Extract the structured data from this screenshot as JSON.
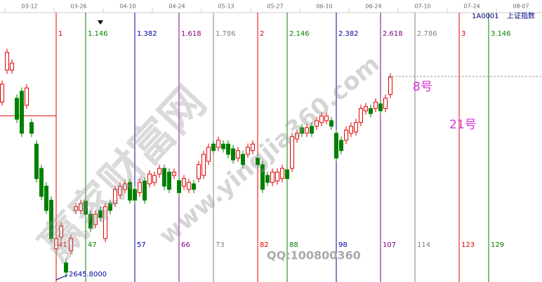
{
  "chart_data": {
    "type": "candlestick",
    "symbol": "1A0001",
    "name": "上证指数",
    "dates": [
      "03-12",
      "03-26",
      "04-10",
      "04-24",
      "05-13",
      "05-27",
      "06-10",
      "06-24",
      "07-10",
      "07-24",
      "08-07"
    ],
    "ylim": [
      2640,
      3240
    ],
    "up_color": "#e00000",
    "down_color": "#008000",
    "candles": [
      [
        3022,
        3068,
        3014,
        3060
      ],
      [
        3090,
        3136,
        3082,
        3128
      ],
      [
        3090,
        3113,
        3082,
        3105
      ],
      [
        3030,
        3038,
        2977,
        2985
      ],
      [
        3045,
        3053,
        2947,
        2955
      ],
      [
        3015,
        3060,
        3007,
        3052
      ],
      [
        2978,
        2986,
        2947,
        2955
      ],
      [
        2932,
        2940,
        2850,
        2858
      ],
      [
        2880,
        2888,
        2812,
        2820
      ],
      [
        2842,
        2850,
        2782,
        2790
      ],
      [
        2812,
        2820,
        2722,
        2730
      ],
      [
        2708,
        2738,
        2690,
        2730
      ],
      [
        2733,
        2765,
        2725,
        2757
      ],
      [
        2678,
        2686,
        2645.8,
        2658
      ],
      [
        2704,
        2738,
        2696,
        2730
      ],
      [
        2790,
        2806,
        2782,
        2798
      ],
      [
        2790,
        2813,
        2782,
        2805
      ],
      [
        2810,
        2818,
        2774,
        2782
      ],
      [
        2782,
        2790,
        2744,
        2752
      ],
      [
        2760,
        2790,
        2752,
        2782
      ],
      [
        2790,
        2798,
        2767,
        2775
      ],
      [
        2730,
        2806,
        2722,
        2798
      ],
      [
        2805,
        2813,
        2782,
        2790
      ],
      [
        2805,
        2843,
        2797,
        2835
      ],
      [
        2823,
        2850,
        2815,
        2842
      ],
      [
        2835,
        2855,
        2827,
        2847
      ],
      [
        2850,
        2858,
        2804,
        2812
      ],
      [
        2835,
        2843,
        2804,
        2812
      ],
      [
        2828,
        2858,
        2820,
        2850
      ],
      [
        2853,
        2861,
        2804,
        2812
      ],
      [
        2847,
        2876,
        2839,
        2868
      ],
      [
        2850,
        2873,
        2842,
        2865
      ],
      [
        2868,
        2888,
        2860,
        2880
      ],
      [
        2880,
        2888,
        2834,
        2842
      ],
      [
        2872,
        2880,
        2827,
        2835
      ],
      [
        2865,
        2880,
        2857,
        2872
      ],
      [
        2854,
        2862,
        2820,
        2828
      ],
      [
        2842,
        2866,
        2834,
        2858
      ],
      [
        2835,
        2858,
        2827,
        2850
      ],
      [
        2847,
        2855,
        2827,
        2835
      ],
      [
        2858,
        2896,
        2850,
        2888
      ],
      [
        2865,
        2918,
        2857,
        2910
      ],
      [
        2895,
        2933,
        2887,
        2925
      ],
      [
        2932,
        2940,
        2910,
        2918
      ],
      [
        2925,
        2948,
        2917,
        2940
      ],
      [
        2932,
        2940,
        2914,
        2922
      ],
      [
        2932,
        2940,
        2902,
        2910
      ],
      [
        2922,
        2930,
        2890,
        2898
      ],
      [
        2902,
        2926,
        2894,
        2918
      ],
      [
        2910,
        2918,
        2880,
        2888
      ],
      [
        2910,
        2933,
        2902,
        2925
      ],
      [
        2918,
        2940,
        2910,
        2932
      ],
      [
        2902,
        2910,
        2880,
        2888
      ],
      [
        2888,
        2896,
        2827,
        2835
      ],
      [
        2865,
        2873,
        2842,
        2850
      ],
      [
        2850,
        2880,
        2842,
        2872
      ],
      [
        2853,
        2880,
        2845,
        2872
      ],
      [
        2858,
        2888,
        2850,
        2880
      ],
      [
        2877,
        2885,
        2850,
        2858
      ],
      [
        2880,
        2956,
        2872,
        2948
      ],
      [
        2943,
        2963,
        2935,
        2955
      ],
      [
        2967,
        2975,
        2947,
        2955
      ],
      [
        2955,
        2975,
        2947,
        2967
      ],
      [
        2970,
        2978,
        2947,
        2955
      ],
      [
        2970,
        2990,
        2962,
        2982
      ],
      [
        2978,
        3000,
        2970,
        2992
      ],
      [
        2982,
        3000,
        2974,
        2992
      ],
      [
        2982,
        2990,
        2962,
        2970
      ],
      [
        2955,
        2963,
        2894,
        2902
      ],
      [
        2940,
        2948,
        2910,
        2918
      ],
      [
        2940,
        2970,
        2932,
        2962
      ],
      [
        2955,
        2978,
        2947,
        2970
      ],
      [
        2958,
        2986,
        2950,
        2978
      ],
      [
        2978,
        3016,
        2970,
        3008
      ],
      [
        3003,
        3020,
        2995,
        3012
      ],
      [
        3008,
        3016,
        2989,
        2997
      ],
      [
        3008,
        3030,
        3000,
        3022
      ],
      [
        3018,
        3026,
        2995,
        3003
      ],
      [
        3008,
        3038,
        3000,
        3030
      ],
      [
        3038,
        3083,
        3030,
        3075
      ]
    ],
    "low_label": {
      "value": 2645.8,
      "label": "2645.8000"
    },
    "fib_lines": [
      {
        "ratio": "1",
        "count": 41,
        "color": "#e00000"
      },
      {
        "ratio": "1.146",
        "count": 47,
        "color": "#008000"
      },
      {
        "ratio": "1.382",
        "count": 57,
        "color": "#0000a0"
      },
      {
        "ratio": "1.618",
        "count": 66,
        "color": "#800080"
      },
      {
        "ratio": "1.786",
        "count": 73,
        "color": "#808080"
      },
      {
        "ratio": "2",
        "count": 82,
        "color": "#e00000"
      },
      {
        "ratio": "2.146",
        "count": 88,
        "color": "#008000"
      },
      {
        "ratio": "2.382",
        "count": 98,
        "color": "#0000a0"
      },
      {
        "ratio": "2.618",
        "count": 107,
        "color": "#800080"
      },
      {
        "ratio": "2.786",
        "count": 114,
        "color": "#808080"
      },
      {
        "ratio": "3",
        "count": 123,
        "color": "#e00000"
      },
      {
        "ratio": "3.146",
        "count": 129,
        "color": "#008000"
      }
    ],
    "annotations": [
      "8号",
      "21号"
    ],
    "watermarks": [
      "赢家财富网",
      "www.yingjia360.com",
      "QQ:100800360"
    ]
  }
}
